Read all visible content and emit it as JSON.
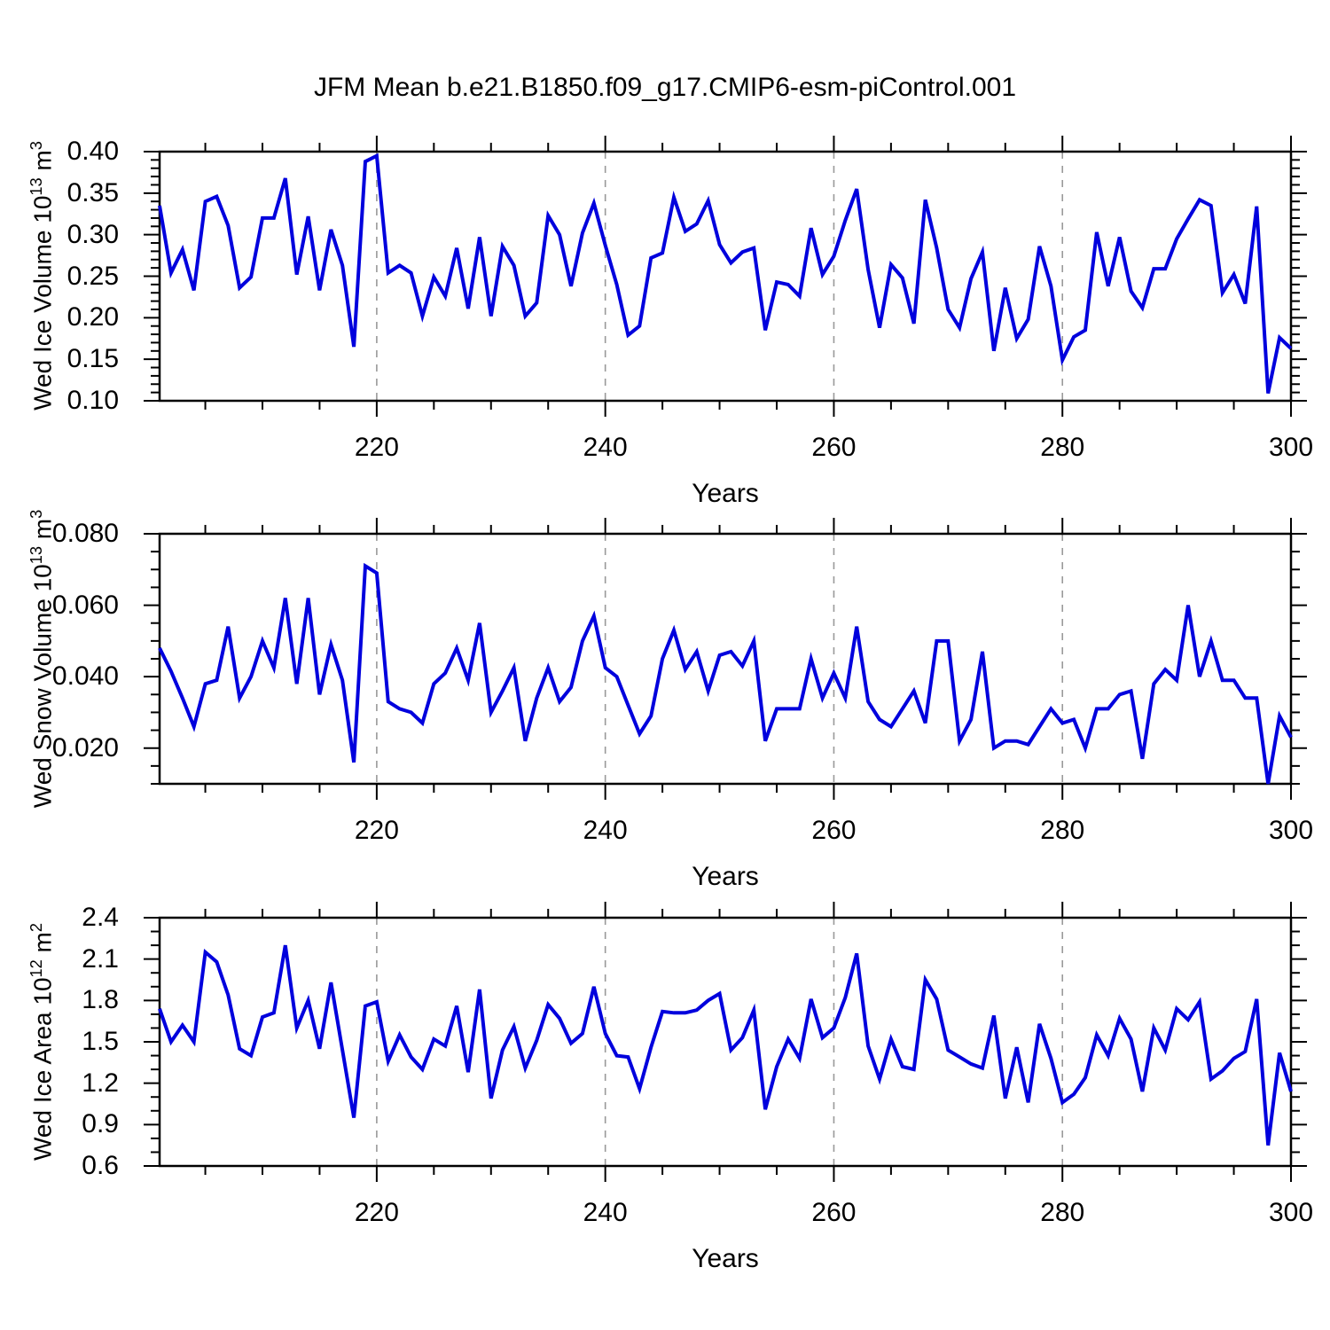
{
  "title": "JFM Mean b.e21.B1850.f09_g17.CMIP6-esm-piControl.001",
  "xlabel": "Years",
  "colors": {
    "line": "#0000dd",
    "grid": "#999999",
    "frame": "#000000",
    "text": "#000000"
  },
  "x_axis": {
    "start": 201,
    "end": 300,
    "ticks": [
      220,
      240,
      260,
      280,
      300
    ],
    "tick_labels": [
      "220",
      "240",
      "260",
      "280",
      "300"
    ],
    "minor_step": 5,
    "grid_lines": [
      220,
      240,
      260,
      280
    ]
  },
  "chart_data": [
    {
      "type": "line",
      "name": "wed-ice-volume",
      "ylabel_text": "Wed Ice Volume 10",
      "ylabel_exp": "13",
      "ylabel_unit": " m",
      "ylabel_unit_exp": "3",
      "ylim": [
        0.1,
        0.4
      ],
      "y_ticks": [
        0.4,
        0.35,
        0.3,
        0.25,
        0.2,
        0.15,
        0.1
      ],
      "y_tick_labels": [
        "0.40",
        "0.35",
        "0.30",
        "0.25",
        "0.20",
        "0.15",
        "0.10"
      ],
      "y_minor_step": 0.01,
      "x_start": 201,
      "values": [
        0.335,
        0.254,
        0.282,
        0.233,
        0.34,
        0.346,
        0.311,
        0.236,
        0.249,
        0.32,
        0.32,
        0.368,
        0.252,
        0.322,
        0.233,
        0.306,
        0.263,
        0.165,
        0.388,
        0.395,
        0.254,
        0.263,
        0.254,
        0.202,
        0.249,
        0.226,
        0.284,
        0.211,
        0.297,
        0.202,
        0.286,
        0.263,
        0.202,
        0.218,
        0.323,
        0.3,
        0.238,
        0.302,
        0.338,
        0.287,
        0.24,
        0.179,
        0.19,
        0.272,
        0.278,
        0.345,
        0.304,
        0.313,
        0.341,
        0.288,
        0.266,
        0.279,
        0.284,
        0.185,
        0.243,
        0.24,
        0.226,
        0.308,
        0.252,
        0.274,
        0.317,
        0.355,
        0.258,
        0.188,
        0.264,
        0.248,
        0.193,
        0.342,
        0.284,
        0.21,
        0.188,
        0.247,
        0.279,
        0.16,
        0.236,
        0.175,
        0.198,
        0.286,
        0.238,
        0.149,
        0.177,
        0.185,
        0.303,
        0.238,
        0.297,
        0.232,
        0.212,
        0.259,
        0.259,
        0.295,
        0.319,
        0.342,
        0.335,
        0.23,
        0.252,
        0.217,
        0.334,
        0.109,
        0.176,
        0.163
      ]
    },
    {
      "type": "line",
      "name": "wed-snow-volume",
      "ylabel_text": "Wed Snow Volume 10",
      "ylabel_exp": "13",
      "ylabel_unit": " m",
      "ylabel_unit_exp": "3",
      "ylim": [
        0.01,
        0.08
      ],
      "y_ticks": [
        0.08,
        0.06,
        0.04,
        0.02
      ],
      "y_tick_labels": [
        "0.080",
        "0.060",
        "0.040",
        "0.020"
      ],
      "y_minor_step": 0.005,
      "x_start": 201,
      "values": [
        0.048,
        0.0415,
        0.034,
        0.026,
        0.038,
        0.039,
        0.054,
        0.034,
        0.04,
        0.05,
        0.0425,
        0.062,
        0.038,
        0.062,
        0.035,
        0.049,
        0.039,
        0.016,
        0.071,
        0.069,
        0.033,
        0.031,
        0.03,
        0.027,
        0.038,
        0.041,
        0.048,
        0.039,
        0.055,
        0.03,
        0.036,
        0.0425,
        0.022,
        0.034,
        0.0425,
        0.033,
        0.037,
        0.05,
        0.057,
        0.0425,
        0.04,
        0.032,
        0.024,
        0.029,
        0.045,
        0.053,
        0.042,
        0.047,
        0.036,
        0.046,
        0.047,
        0.043,
        0.05,
        0.022,
        0.031,
        0.031,
        0.031,
        0.045,
        0.034,
        0.041,
        0.034,
        0.054,
        0.033,
        0.028,
        0.026,
        0.031,
        0.036,
        0.027,
        0.05,
        0.05,
        0.022,
        0.028,
        0.047,
        0.02,
        0.022,
        0.022,
        0.021,
        0.026,
        0.031,
        0.027,
        0.028,
        0.02,
        0.031,
        0.031,
        0.035,
        0.036,
        0.017,
        0.038,
        0.042,
        0.039,
        0.06,
        0.04,
        0.05,
        0.039,
        0.039,
        0.034,
        0.034,
        0.01,
        0.029,
        0.023
      ]
    },
    {
      "type": "line",
      "name": "wed-ice-area",
      "ylabel_text": "Wed Ice Area 10",
      "ylabel_exp": "12",
      "ylabel_unit": " m",
      "ylabel_unit_exp": "2",
      "ylim": [
        0.6,
        2.4
      ],
      "y_ticks": [
        2.4,
        2.1,
        1.8,
        1.5,
        1.2,
        0.9,
        0.6
      ],
      "y_tick_labels": [
        "2.4",
        "2.1",
        "1.8",
        "1.5",
        "1.2",
        "0.9",
        "0.6"
      ],
      "y_minor_step": 0.1,
      "x_start": 201,
      "values": [
        1.74,
        1.5,
        1.62,
        1.5,
        2.15,
        2.08,
        1.84,
        1.45,
        1.4,
        1.68,
        1.71,
        2.2,
        1.6,
        1.8,
        1.45,
        1.93,
        1.44,
        0.95,
        1.76,
        1.79,
        1.36,
        1.55,
        1.39,
        1.3,
        1.52,
        1.47,
        1.76,
        1.28,
        1.88,
        1.09,
        1.44,
        1.61,
        1.31,
        1.51,
        1.77,
        1.67,
        1.49,
        1.56,
        1.9,
        1.56,
        1.4,
        1.39,
        1.16,
        1.46,
        1.72,
        1.71,
        1.71,
        1.73,
        1.8,
        1.85,
        1.44,
        1.53,
        1.73,
        1.01,
        1.32,
        1.52,
        1.38,
        1.81,
        1.53,
        1.6,
        1.82,
        2.14,
        1.47,
        1.23,
        1.52,
        1.32,
        1.3,
        1.95,
        1.81,
        1.44,
        1.39,
        1.34,
        1.31,
        1.69,
        1.09,
        1.46,
        1.06,
        1.63,
        1.38,
        1.06,
        1.12,
        1.24,
        1.55,
        1.4,
        1.67,
        1.52,
        1.14,
        1.6,
        1.44,
        1.74,
        1.66,
        1.79,
        1.23,
        1.29,
        1.38,
        1.43,
        1.81,
        0.75,
        1.42,
        1.14
      ]
    }
  ]
}
